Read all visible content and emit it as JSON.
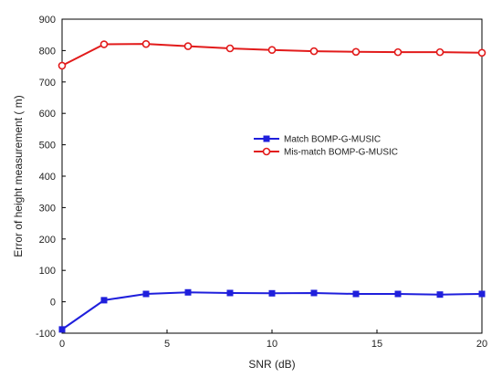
{
  "chart_data": {
    "type": "line",
    "title": "",
    "xlabel": "SNR (dB)",
    "ylabel": "Error of height measurement ( m)",
    "xlim": [
      0,
      20
    ],
    "ylim": [
      -100,
      900
    ],
    "xticks": [
      0,
      5,
      10,
      15,
      20
    ],
    "xtick_labels": [
      "0",
      "5",
      "10",
      "15",
      "20"
    ],
    "yticks": [
      -100,
      0,
      100,
      200,
      300,
      400,
      500,
      600,
      700,
      800,
      900
    ],
    "ytick_labels": [
      "-100",
      "0",
      "100",
      "200",
      "300",
      "400",
      "500",
      "600",
      "700",
      "800",
      "900"
    ],
    "grid": false,
    "legend_position": "center-right",
    "x": [
      0,
      2,
      4,
      6,
      8,
      10,
      12,
      14,
      16,
      18,
      20
    ],
    "series": [
      {
        "name": "Match BOMP-G-MUSIC",
        "color": "#1f1fdc",
        "marker": "square",
        "values": [
          -88,
          5,
          25,
          30,
          28,
          27,
          28,
          25,
          25,
          23,
          25
        ]
      },
      {
        "name": "Mis-match BOMP-G-MUSIC",
        "color": "#e21b1b",
        "marker": "circle",
        "values": [
          752,
          820,
          821,
          814,
          807,
          802,
          798,
          796,
          795,
          795,
          793
        ]
      }
    ]
  }
}
